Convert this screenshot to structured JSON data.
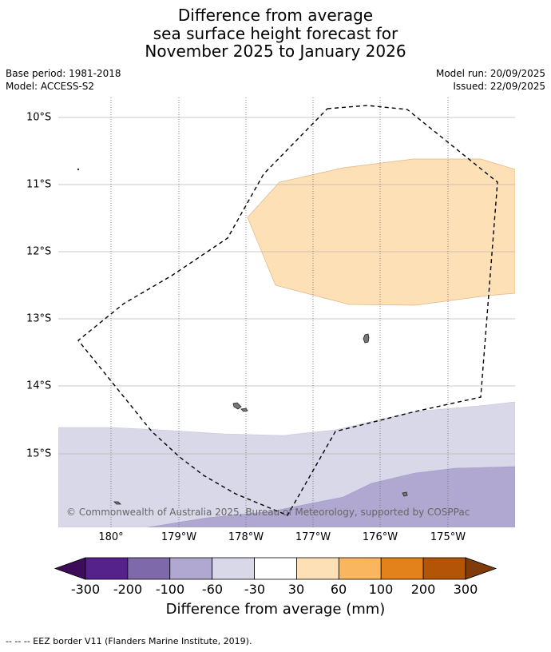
{
  "title": {
    "line1": "Difference from average",
    "line2": "sea surface height forecast for",
    "line3": "November 2025 to January 2026"
  },
  "meta": {
    "base_period": "Base period: 1981-2018",
    "model": "Model: ACCESS-S2",
    "model_run": "Model run: 20/09/2025",
    "issued": "Issued: 22/09/2025"
  },
  "map": {
    "lat_labels": [
      "10°S",
      "11°S",
      "12°S",
      "13°S",
      "14°S",
      "15°S"
    ],
    "lon_labels": [
      "180°",
      "179°W",
      "178°W",
      "177°W",
      "176°W",
      "175°W"
    ],
    "copyright": "© Commonwealth of Australia 2025, Bureau of Meteorology, supported by COSPPac"
  },
  "colorbar": {
    "ticks": [
      "-300",
      "-200",
      "-100",
      "-60",
      "-30",
      "30",
      "60",
      "100",
      "200",
      "300"
    ],
    "colors": [
      "#3d0c5a",
      "#54228a",
      "#7e6aaa",
      "#b0a8d0",
      "#d8d8e8",
      "#ffffff",
      "#fde0b6",
      "#fab65e",
      "#e3821a",
      "#b35406",
      "#7f3b08"
    ],
    "title": "Difference from average (mm)"
  },
  "footnote": "--  --  -- EEZ border V11 (Flanders Marine Institute, 2019)."
}
